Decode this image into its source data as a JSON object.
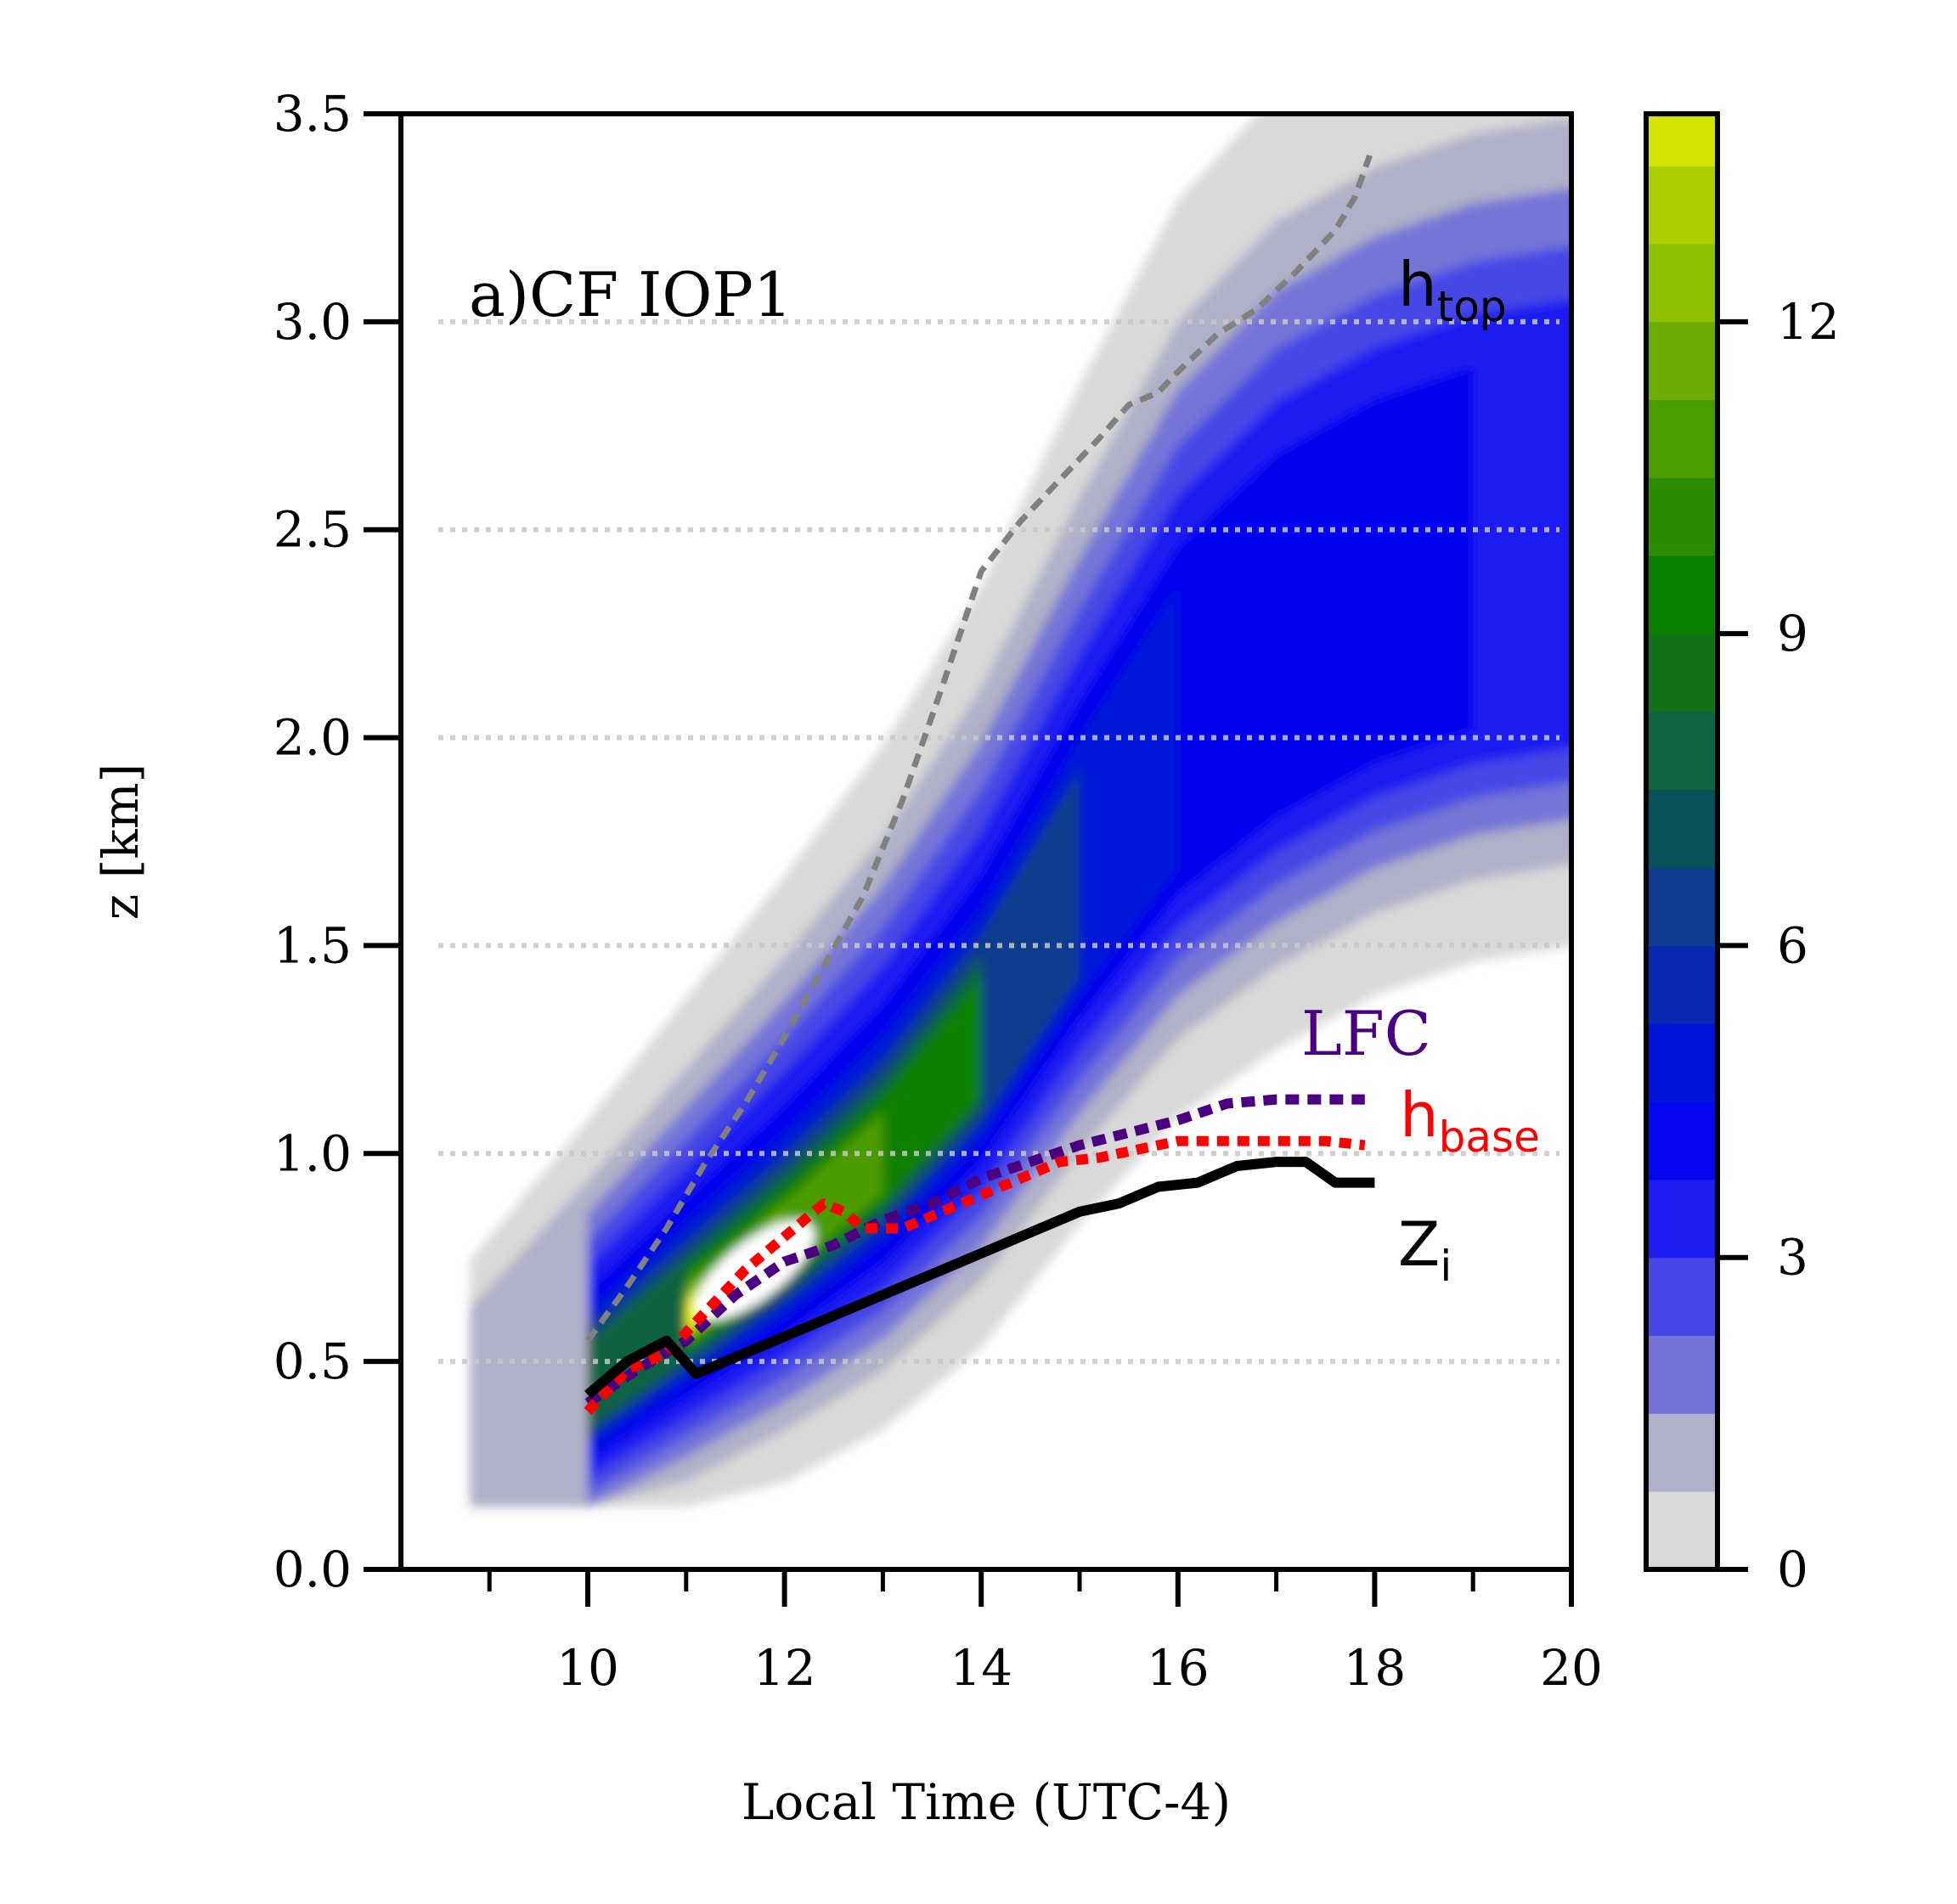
{
  "chart_data": {
    "type": "contour",
    "panel_label": "a)CF IOP1",
    "xlabel": "Local Time (UTC-4)",
    "ylabel": "z [km]",
    "xlim": [
      8.1,
      20.0
    ],
    "ylim": [
      0.0,
      3.5
    ],
    "x_ticks": [
      10,
      12,
      14,
      16,
      18,
      20
    ],
    "x_minor_ticks": [
      9,
      11,
      13,
      15,
      17,
      19
    ],
    "y_ticks": [
      0.0,
      0.5,
      1.0,
      1.5,
      2.0,
      2.5,
      3.0,
      3.5
    ],
    "y_tick_labels": [
      "0.0",
      "0.5",
      "1.0",
      "1.5",
      "2.0",
      "2.5",
      "3.0",
      "3.5"
    ],
    "grid": "horizontal dotted at y ticks",
    "colorbar": {
      "ticks": [
        0,
        3,
        6,
        9,
        12
      ],
      "tick_labels": [
        "0",
        "3",
        "6",
        "9",
        "12"
      ],
      "vmin": 0,
      "vmax": 14,
      "levels": [
        0,
        0.75,
        1.5,
        2.25,
        3,
        3.75,
        4.5,
        5.25,
        6,
        6.75,
        7.5,
        8.25,
        9,
        9.75,
        10.5,
        11.25,
        12,
        12.75,
        13.5,
        14
      ],
      "colors": [
        "#d9d9d9",
        "#b0b0c8",
        "#7474d8",
        "#4646e6",
        "#1e1ef2",
        "#0505ee",
        "#0014d8",
        "#0a28b4",
        "#0f3c8c",
        "#08505a",
        "#0c6440",
        "#12721a",
        "#0a8000",
        "#2c8c00",
        "#4c9c00",
        "#6aac00",
        "#8cc000",
        "#aed000",
        "#d2e400",
        "#f6f600"
      ]
    },
    "series": [
      {
        "name": "h_top",
        "style": "dashed",
        "color": "#808080",
        "x": [
          10.0,
          10.4,
          10.8,
          11.2,
          11.6,
          12.0,
          12.4,
          12.8,
          13.2,
          13.6,
          14.0,
          14.4,
          14.8,
          15.2,
          15.5,
          15.8,
          16.0,
          16.4,
          16.8,
          17.2,
          17.6,
          17.8,
          17.95
        ],
        "y": [
          0.55,
          0.68,
          0.82,
          0.98,
          1.12,
          1.28,
          1.45,
          1.62,
          1.85,
          2.12,
          2.4,
          2.52,
          2.62,
          2.72,
          2.8,
          2.83,
          2.88,
          2.97,
          3.03,
          3.12,
          3.22,
          3.3,
          3.4
        ]
      },
      {
        "name": "LFC",
        "style": "dashed",
        "color": "#4b0082",
        "x": [
          10.0,
          10.5,
          11.0,
          11.5,
          12.0,
          12.5,
          13.0,
          13.5,
          14.0,
          14.5,
          15.0,
          15.5,
          16.0,
          16.5,
          17.0,
          17.5,
          17.9
        ],
        "y": [
          0.4,
          0.48,
          0.55,
          0.66,
          0.74,
          0.78,
          0.84,
          0.88,
          0.94,
          0.98,
          1.02,
          1.05,
          1.08,
          1.12,
          1.13,
          1.13,
          1.13
        ]
      },
      {
        "name": "h_base",
        "style": "dotted",
        "color": "#ff0000",
        "x": [
          10.0,
          10.4,
          10.8,
          11.2,
          11.6,
          12.0,
          12.4,
          12.6,
          12.8,
          13.2,
          13.6,
          14.0,
          14.4,
          14.8,
          15.2,
          15.6,
          16.0,
          16.5,
          17.0,
          17.5,
          17.9
        ],
        "y": [
          0.38,
          0.48,
          0.52,
          0.62,
          0.72,
          0.8,
          0.88,
          0.86,
          0.82,
          0.82,
          0.86,
          0.9,
          0.94,
          0.98,
          0.99,
          1.01,
          1.03,
          1.03,
          1.03,
          1.03,
          1.02
        ]
      },
      {
        "name": "Z_i",
        "style": "solid",
        "color": "#000000",
        "x": [
          10.0,
          10.4,
          10.8,
          11.1,
          11.4,
          11.8,
          12.2,
          12.6,
          13.0,
          13.4,
          13.8,
          14.2,
          14.6,
          15.0,
          15.4,
          15.8,
          16.2,
          16.6,
          17.0,
          17.3,
          17.6,
          18.0
        ],
        "y": [
          0.42,
          0.5,
          0.55,
          0.47,
          0.5,
          0.54,
          0.58,
          0.62,
          0.66,
          0.7,
          0.74,
          0.78,
          0.82,
          0.86,
          0.88,
          0.92,
          0.93,
          0.97,
          0.98,
          0.98,
          0.93,
          0.93
        ]
      }
    ],
    "series_labels": [
      {
        "text": "h",
        "sub": "top",
        "color": "#000000"
      },
      {
        "text": "LFC",
        "sub": "",
        "color": "#4b0082"
      },
      {
        "text": "h",
        "sub": "base",
        "color": "#ff0000"
      },
      {
        "text": "Z",
        "sub": "i",
        "color": "#000000"
      }
    ]
  }
}
